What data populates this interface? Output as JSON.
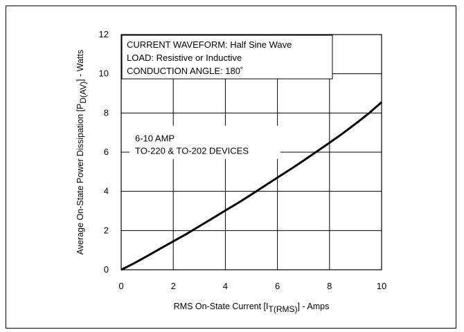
{
  "chart_data": {
    "type": "line",
    "xlabel": {
      "main": "RMS On-State Current [I",
      "sub": "T(RMS)",
      "tail": "] - Amps"
    },
    "ylabel": {
      "main": "Average On-State Power Dissipation [P",
      "sub": "D(AV)",
      "tail": "] - Watts"
    },
    "xlim": [
      0,
      10
    ],
    "ylim": [
      0,
      12
    ],
    "xticks": [
      "0",
      "2",
      "4",
      "6",
      "8",
      "10"
    ],
    "yticks": [
      "0",
      "2",
      "4",
      "6",
      "8",
      "10",
      "12"
    ],
    "grid": true,
    "legend_box": [
      "CURRENT WAVEFORM: Half Sine Wave",
      "LOAD: Resistive or Inductive",
      "CONDUCTION ANGLE: 180˚"
    ],
    "annotation": [
      "6-10 AMP",
      "TO-220 & TO-202 DEVICES"
    ],
    "series": [
      {
        "x": [
          0,
          0.5,
          1,
          1.5,
          2,
          2.5,
          3,
          3.5,
          4,
          4.5,
          5,
          5.5,
          6,
          6.5,
          7,
          7.5,
          8,
          8.5,
          9,
          9.5,
          10
        ],
        "y": [
          0,
          0.33,
          0.7,
          1.08,
          1.45,
          1.82,
          2.22,
          2.62,
          3.02,
          3.42,
          3.84,
          4.27,
          4.7,
          5.13,
          5.57,
          6.02,
          6.48,
          6.95,
          7.45,
          7.97,
          8.55
        ]
      }
    ]
  }
}
